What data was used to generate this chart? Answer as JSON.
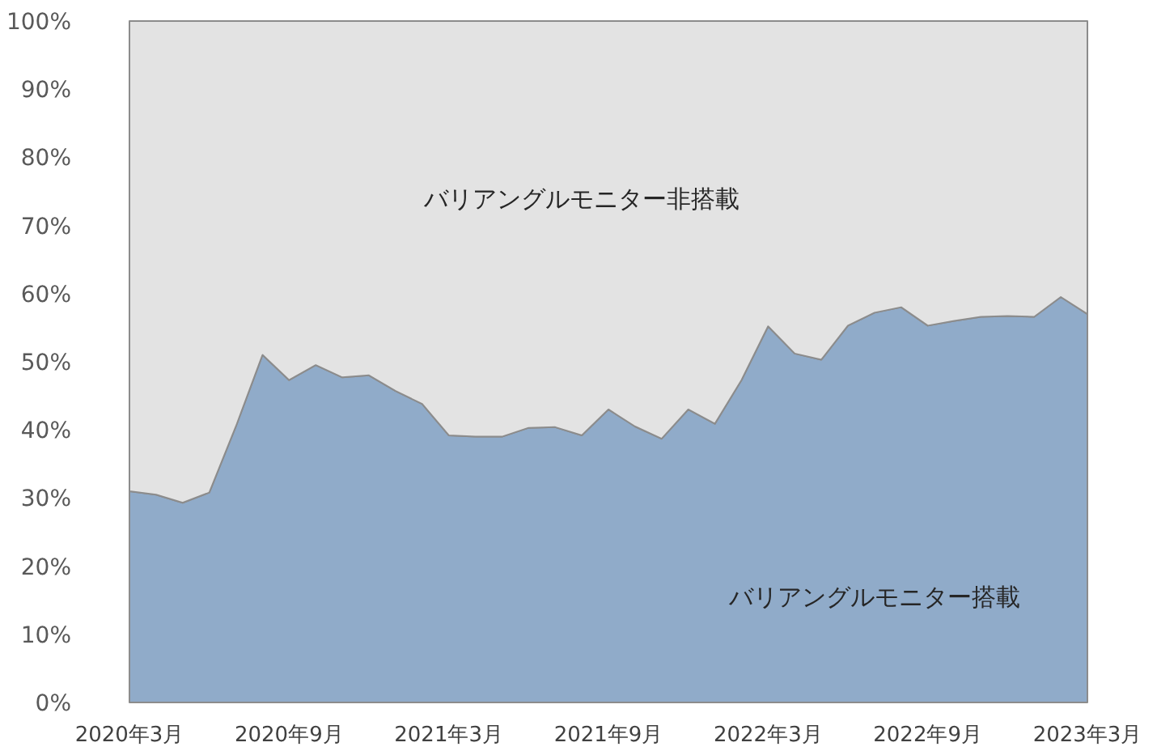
{
  "chart_data": {
    "type": "area",
    "stacked": true,
    "x": [
      "2020-03",
      "2020-04",
      "2020-05",
      "2020-06",
      "2020-07",
      "2020-08",
      "2020-09",
      "2020-10",
      "2020-11",
      "2020-12",
      "2021-01",
      "2021-02",
      "2021-03",
      "2021-04",
      "2021-05",
      "2021-06",
      "2021-07",
      "2021-08",
      "2021-09",
      "2021-10",
      "2021-11",
      "2021-12",
      "2022-01",
      "2022-02",
      "2022-03",
      "2022-04",
      "2022-05",
      "2022-06",
      "2022-07",
      "2022-08",
      "2022-09",
      "2022-10",
      "2022-11",
      "2022-12",
      "2023-01",
      "2023-02",
      "2023-03"
    ],
    "xlim": [
      "2020-03",
      "2023-03"
    ],
    "xticks": [
      {
        "value": "2020-03",
        "label": "2020年3月"
      },
      {
        "value": "2020-09",
        "label": "2020年9月"
      },
      {
        "value": "2021-03",
        "label": "2021年3月"
      },
      {
        "value": "2021-09",
        "label": "2021年9月"
      },
      {
        "value": "2022-03",
        "label": "2022年3月"
      },
      {
        "value": "2022-09",
        "label": "2022年9月"
      },
      {
        "value": "2023-03",
        "label": "2023年3月"
      }
    ],
    "ylim": [
      0,
      100
    ],
    "yticks": [
      {
        "value": 0,
        "label": "0%"
      },
      {
        "value": 10,
        "label": "10%"
      },
      {
        "value": 20,
        "label": "20%"
      },
      {
        "value": 30,
        "label": "30%"
      },
      {
        "value": 40,
        "label": "40%"
      },
      {
        "value": 50,
        "label": "50%"
      },
      {
        "value": 60,
        "label": "60%"
      },
      {
        "value": 70,
        "label": "70%"
      },
      {
        "value": 80,
        "label": "80%"
      },
      {
        "value": 90,
        "label": "90%"
      },
      {
        "value": 100,
        "label": "100%"
      }
    ],
    "series": [
      {
        "name": "バリアングルモニター搭載",
        "color": "#90abc9",
        "values": [
          31,
          30.5,
          29.3,
          30.8,
          40.5,
          51,
          47.3,
          49.5,
          47.7,
          48,
          45.7,
          43.8,
          39.2,
          39,
          39,
          40.3,
          40.4,
          39.2,
          43,
          40.5,
          38.7,
          43,
          40.9,
          47.3,
          55.2,
          51.2,
          50.3,
          55.3,
          57.2,
          58,
          55.3,
          56,
          56.6,
          56.7,
          56.6,
          59.5,
          57
        ]
      },
      {
        "name": "バリアングルモニター非搭載",
        "color": "#e3e3e3",
        "values": [
          69,
          69.5,
          70.7,
          69.2,
          59.5,
          49,
          52.7,
          50.5,
          52.3,
          52,
          54.3,
          56.2,
          60.8,
          61,
          61,
          59.7,
          59.6,
          60.8,
          57,
          59.5,
          61.3,
          57,
          59.1,
          52.7,
          44.8,
          48.8,
          49.7,
          44.7,
          42.8,
          42,
          44.7,
          44,
          43.4,
          43.3,
          43.4,
          40.5,
          43
        ]
      }
    ]
  }
}
